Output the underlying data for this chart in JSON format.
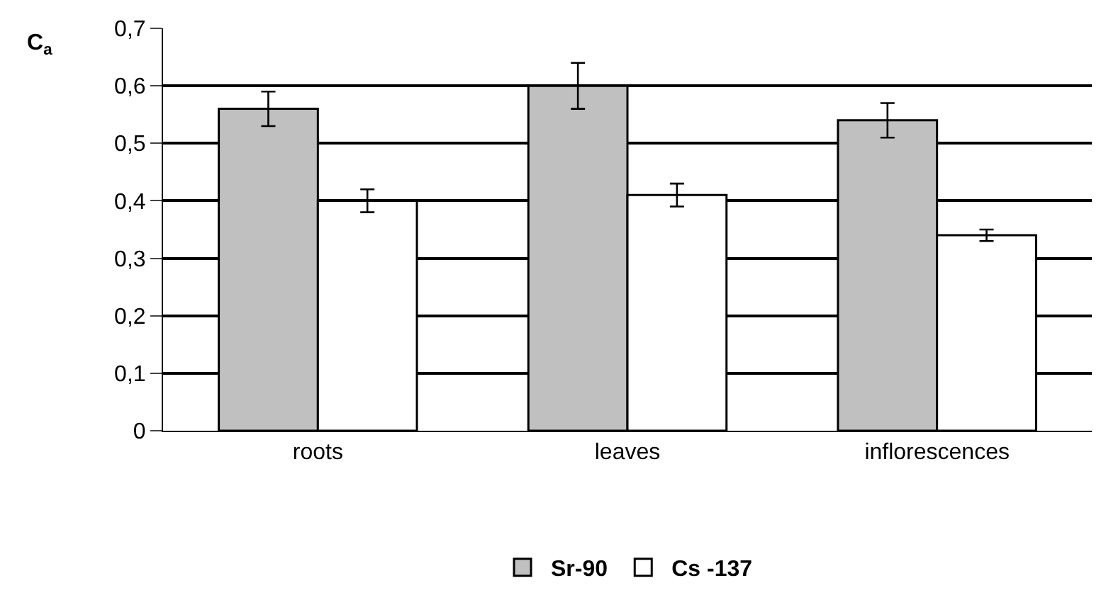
{
  "chart_data": {
    "type": "bar",
    "ylabel": "C$_{a}$",
    "categories": [
      "roots",
      "leaves",
      "inflorescences"
    ],
    "series": [
      {
        "name": "Sr-90",
        "color": "#c0c0c0",
        "values": [
          0.56,
          0.6,
          0.54
        ],
        "errors": [
          0.03,
          0.04,
          0.03
        ]
      },
      {
        "name": "Cs -137",
        "color": "#ffffff",
        "values": [
          0.4,
          0.41,
          0.34
        ],
        "errors": [
          0.02,
          0.02,
          0.01
        ]
      }
    ],
    "ylim": [
      0,
      0.7
    ],
    "yticks": [
      {
        "value": 0,
        "label": "0"
      },
      {
        "value": 0.1,
        "label": "0,1"
      },
      {
        "value": 0.2,
        "label": "0,2"
      },
      {
        "value": 0.3,
        "label": "0,3"
      },
      {
        "value": 0.4,
        "label": "0,4"
      },
      {
        "value": 0.5,
        "label": "0,5"
      },
      {
        "value": 0.6,
        "label": "0,6"
      },
      {
        "value": 0.7,
        "label": "0,7"
      }
    ],
    "grid": "y",
    "legend": "bottom"
  }
}
